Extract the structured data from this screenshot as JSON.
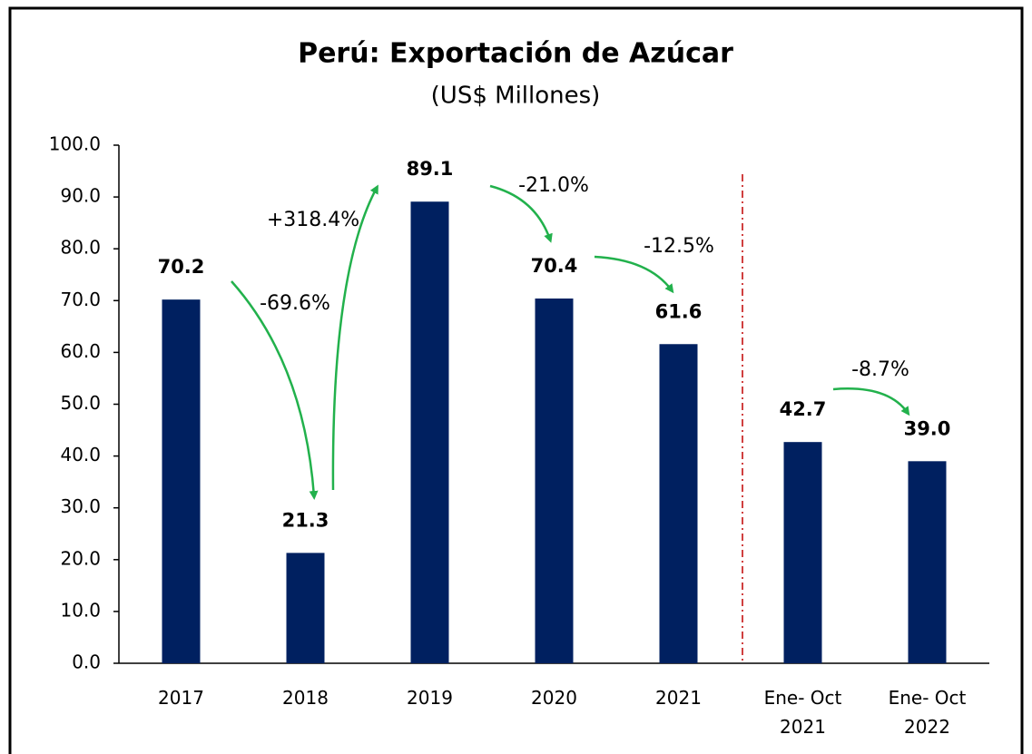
{
  "chart_data": {
    "type": "bar",
    "title": "Perú: Exportación de Azúcar",
    "subtitle": "(US$ Millones)",
    "categories": [
      "2017",
      "2018",
      "2019",
      "2020",
      "2021",
      "Ene- Oct 2021",
      "Ene- Oct 2022"
    ],
    "values": [
      70.2,
      21.3,
      89.1,
      70.4,
      61.6,
      42.7,
      39.0
    ],
    "value_labels": [
      "70.2",
      "21.3",
      "89.1",
      "70.4",
      "61.6",
      "42.7",
      "39.0"
    ],
    "color": "#002060",
    "ylim": [
      0,
      100
    ],
    "yticks": [
      {
        "value": 0,
        "label": "0.0"
      },
      {
        "value": 10,
        "label": "10.0"
      },
      {
        "value": 20,
        "label": "20.0"
      },
      {
        "value": 30,
        "label": "30.0"
      },
      {
        "value": 40,
        "label": "40.0"
      },
      {
        "value": 50,
        "label": "50.0"
      },
      {
        "value": 60,
        "label": "60.0"
      },
      {
        "value": 70,
        "label": "70.0"
      },
      {
        "value": 80,
        "label": "80.0"
      },
      {
        "value": 90,
        "label": "90.0"
      },
      {
        "value": 100,
        "label": "100.0"
      }
    ],
    "grid": false,
    "annotations": [
      "-69.6%",
      "+318.4%",
      "-21.0%",
      "-12.5%",
      "-8.7%"
    ]
  }
}
